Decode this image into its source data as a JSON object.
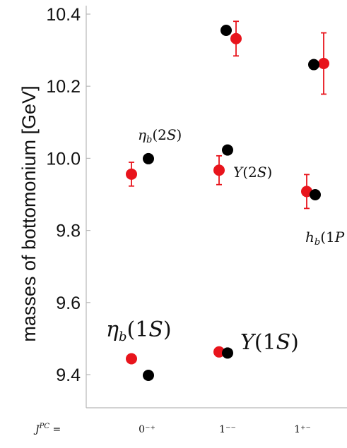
{
  "chart_data": {
    "type": "scatter",
    "ylabel": "masses of bottomonium [GeV]",
    "ylim": [
      9.33,
      10.44
    ],
    "yticks": [
      9.4,
      9.6,
      9.8,
      10.0,
      10.2,
      10.4
    ],
    "ytick_labels": [
      "9.4",
      "9.6",
      "9.8",
      "10.0",
      "10.2",
      "10.4"
    ],
    "grid": false,
    "x_axis_label": "J^PC =",
    "categories": [
      "0⁻⁺",
      "1⁻⁻",
      "1⁺⁻"
    ],
    "colors": {
      "lattice": "#e8141c",
      "experiment": "#000000"
    },
    "series": [
      {
        "points": [
          {
            "category": 0,
            "offset": -0.12,
            "y": 9.444,
            "err": 0.0
          },
          {
            "category": 0,
            "offset": -0.12,
            "y": 9.956,
            "err": 0.033
          },
          {
            "category": 1,
            "offset": -0.12,
            "y": 9.463,
            "err": 0.0
          },
          {
            "category": 1,
            "offset": -0.12,
            "y": 9.967,
            "err": 0.04
          },
          {
            "category": 1,
            "offset": 0.12,
            "y": 10.332,
            "err": 0.048
          },
          {
            "category": 2,
            "offset": -0.12,
            "y": 9.908,
            "err": 0.047
          },
          {
            "category": 2,
            "offset": 0.12,
            "y": 10.263,
            "err": 0.085
          }
        ]
      },
      {
        "points": [
          {
            "category": 0,
            "offset": 0.12,
            "y": 9.398
          },
          {
            "category": 0,
            "offset": 0.12,
            "y": 9.999
          },
          {
            "category": 1,
            "offset": 0.0,
            "y": 9.46
          },
          {
            "category": 1,
            "offset": 0.0,
            "y": 10.023
          },
          {
            "category": 1,
            "offset": -0.02,
            "y": 10.355
          },
          {
            "category": 2,
            "offset": 0.0,
            "y": 9.899
          },
          {
            "category": 2,
            "offset": -0.02,
            "y": 10.26
          }
        ]
      }
    ],
    "annotations": [
      {
        "id": "etab1s",
        "name": "η",
        "sub": "b",
        "arg": "(1S)",
        "size": "large"
      },
      {
        "id": "ups1s",
        "name": "Υ",
        "sub": "",
        "arg": "(1S)",
        "size": "large"
      },
      {
        "id": "etab2s",
        "name": "η",
        "sub": "b",
        "arg": "(2S)",
        "size": "small"
      },
      {
        "id": "ups2s",
        "name": "Υ",
        "sub": "",
        "arg": "(2S)",
        "size": "small"
      },
      {
        "id": "hb1p",
        "name": "h",
        "sub": "b",
        "arg": "(1P",
        "size": "small"
      }
    ]
  }
}
